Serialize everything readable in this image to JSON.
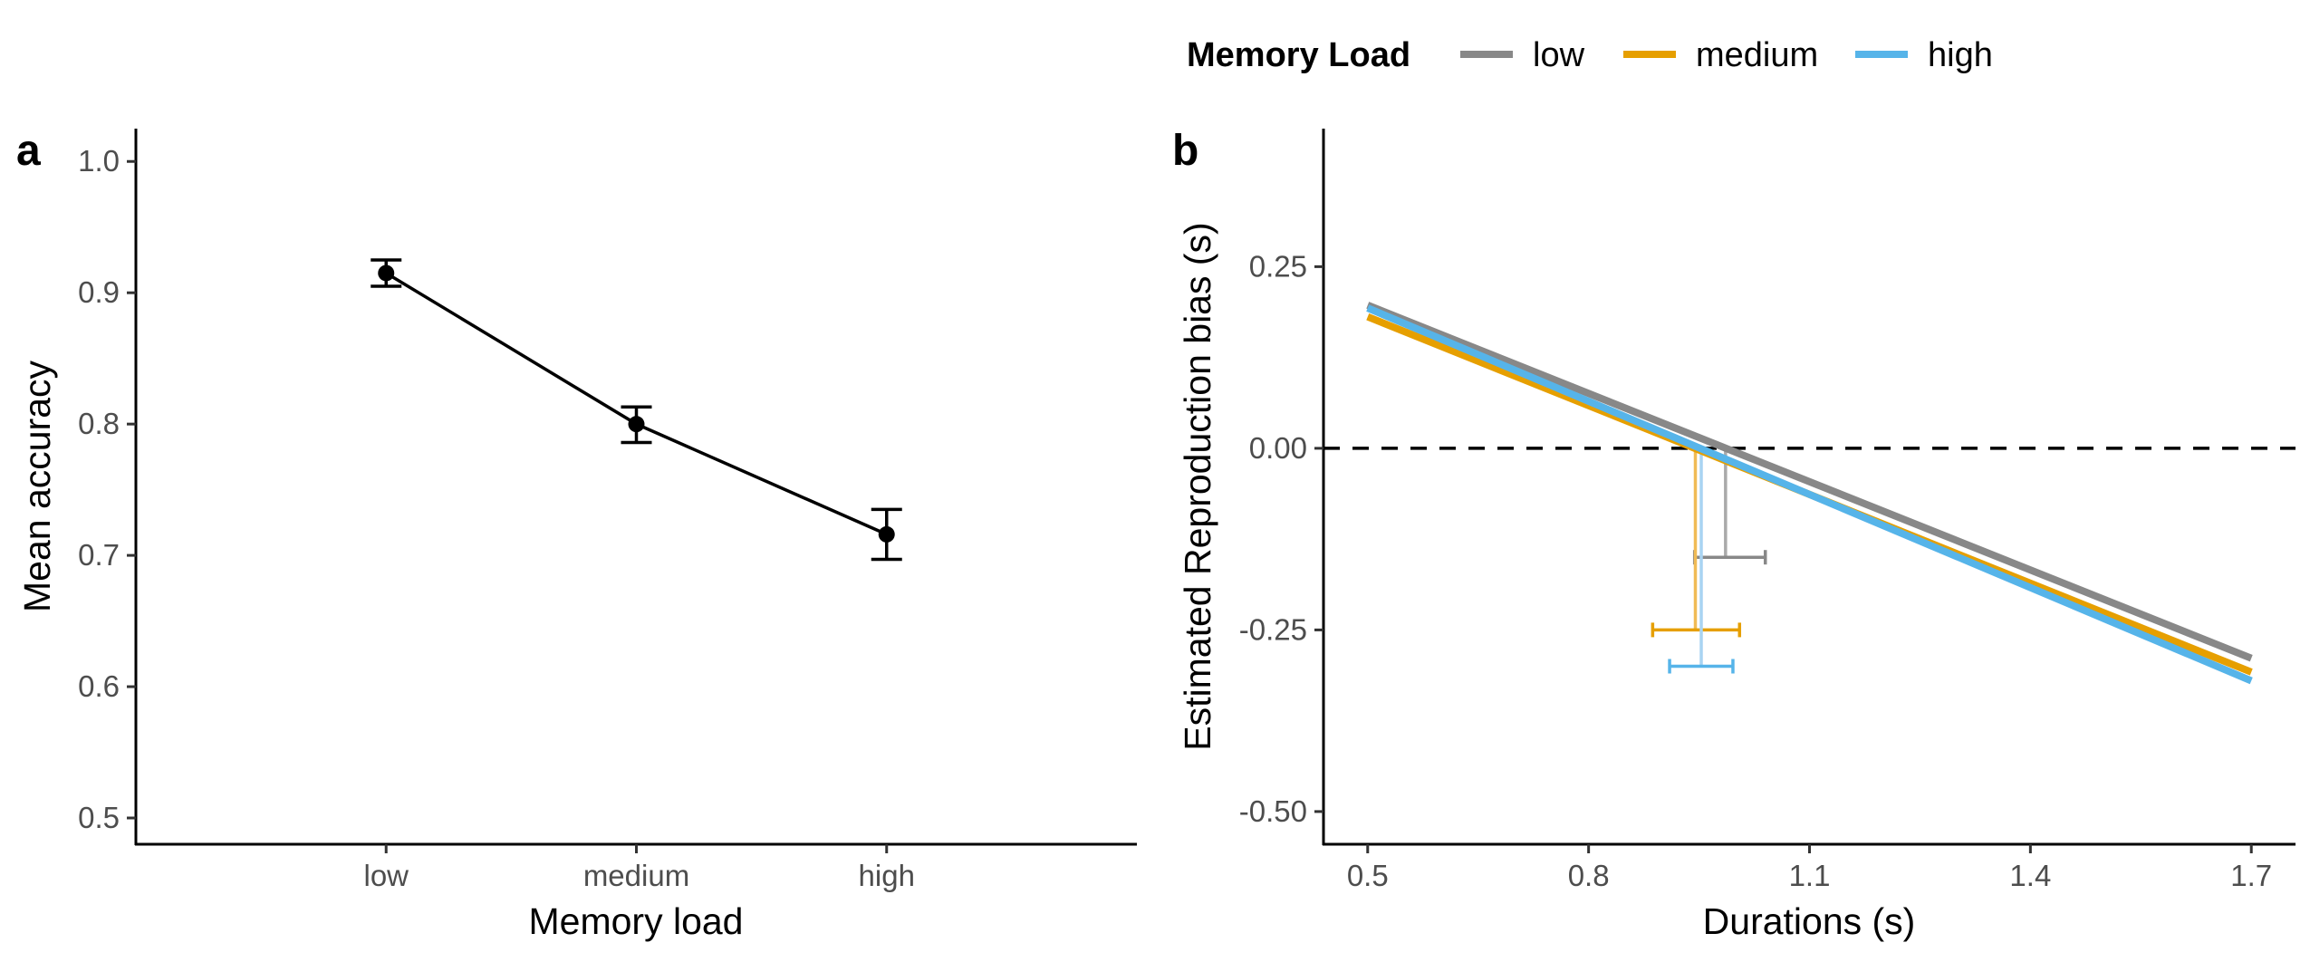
{
  "chart_data": [
    {
      "panel": "a",
      "type": "line",
      "title": "",
      "xlabel": "Memory load",
      "ylabel": "Mean accuracy",
      "categories": [
        "low",
        "medium",
        "high"
      ],
      "ylim": [
        0.48,
        1.025
      ],
      "yticks": [
        0.5,
        0.6,
        0.7,
        0.8,
        0.9,
        1.0
      ],
      "ytick_labels": [
        "0.5",
        "0.6",
        "0.7",
        "0.8",
        "0.9",
        "1.0"
      ],
      "series": [
        {
          "values": [
            0.915,
            0.8,
            0.716
          ],
          "error_low": [
            0.905,
            0.786,
            0.697
          ],
          "error_high": [
            0.925,
            0.813,
            0.735
          ],
          "color": "#000000"
        }
      ],
      "grid": false
    },
    {
      "panel": "b",
      "type": "line",
      "title": "",
      "xlabel": "Durations (s)",
      "ylabel": "Estimated Reproduction bias (s)",
      "xlim": [
        0.44,
        1.76
      ],
      "ylim": [
        -0.545,
        0.44
      ],
      "xticks": [
        0.5,
        0.8,
        1.1,
        1.4,
        1.7
      ],
      "xtick_labels": [
        "0.5",
        "0.8",
        "1.1",
        "1.4",
        "1.7"
      ],
      "yticks": [
        -0.5,
        -0.25,
        0.0,
        0.25
      ],
      "ytick_labels": [
        "-0.50",
        "-0.25",
        "0.00",
        "0.25"
      ],
      "reference_line": {
        "y": 0.0,
        "style": "dashed",
        "color": "#000000"
      },
      "legend": {
        "title": "Memory Load",
        "position": "top"
      },
      "series": [
        {
          "name": "low",
          "color": "#888888",
          "light_color": "#aaaaaa",
          "x": [
            0.5,
            1.7
          ],
          "y": [
            0.197,
            -0.289
          ],
          "pse": 0.986,
          "pse_ci": [
            0.944,
            1.04
          ],
          "pse_marker_y": -0.15
        },
        {
          "name": "medium",
          "color": "#E69F00",
          "light_color": "#f0bb55",
          "x": [
            0.5,
            1.7
          ],
          "y": [
            0.181,
            -0.308
          ],
          "pse": 0.945,
          "pse_ci": [
            0.887,
            1.005
          ],
          "pse_marker_y": -0.25
        },
        {
          "name": "high",
          "color": "#56B4E9",
          "light_color": "#a9d4f2",
          "x": [
            0.5,
            1.7
          ],
          "y": [
            0.193,
            -0.32
          ],
          "pse": 0.953,
          "pse_ci": [
            0.91,
            0.996
          ],
          "pse_marker_y": -0.3
        }
      ],
      "grid": false
    }
  ]
}
